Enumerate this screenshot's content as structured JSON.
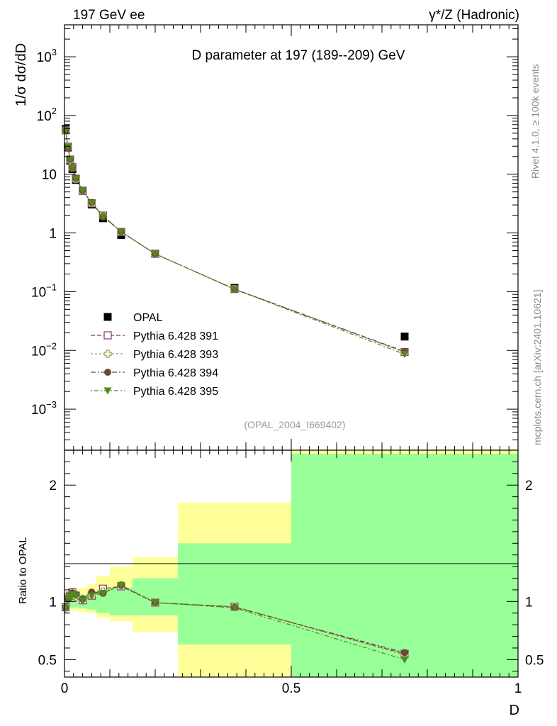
{
  "header": {
    "left": "197 GeV ee",
    "right": "γ*/Z (Hadronic)",
    "right_sup": "*"
  },
  "side_labels": {
    "top": "Rivet 4.1.0, ≥ 100k events",
    "bottom": "mcplots.cern.ch [arXiv:2401.10621]"
  },
  "chart_data": [
    {
      "type": "line",
      "title": "D parameter at 197 (189--209) GeV",
      "ylabel": "1/σ  dσ/dD",
      "xlabel": "D",
      "yscale": "log",
      "xlim": [
        0,
        1
      ],
      "ylim": [
        0.0002,
        3500
      ],
      "ytick_labels": [
        {
          "v": 0.001,
          "base": "10",
          "exp": "−3"
        },
        {
          "v": 0.01,
          "base": "10",
          "exp": "−2"
        },
        {
          "v": 0.1,
          "base": "10",
          "exp": "−1"
        },
        {
          "v": 1,
          "base": "1",
          "exp": ""
        },
        {
          "v": 10,
          "base": "10",
          "exp": ""
        },
        {
          "v": 100,
          "base": "10",
          "exp": "2"
        },
        {
          "v": 1000,
          "base": "10",
          "exp": "3"
        }
      ],
      "annotation": "(OPAL_2004_I669402)",
      "x": [
        0.0025,
        0.0075,
        0.0125,
        0.0175,
        0.025,
        0.04,
        0.06,
        0.085,
        0.125,
        0.2,
        0.375,
        0.75
      ],
      "data": {
        "name": "OPAL",
        "values": [
          59,
          28.5,
          17,
          12.2,
          8.0,
          5.2,
          3.05,
          1.78,
          0.92,
          0.445,
          0.116,
          0.0172
        ]
      },
      "series": [
        {
          "name": "Pythia 6.428 391",
          "color": "#7d3b62",
          "marker": "open-square",
          "dash": "6,3",
          "values": [
            56,
            29.5,
            17.8,
            13.2,
            8.4,
            5.25,
            3.2,
            1.98,
            1.04,
            0.44,
            0.111,
            0.0094
          ]
        },
        {
          "name": "Pythia 6.428 393",
          "color": "#9d9853",
          "marker": "open-cross",
          "dash": "3,3",
          "values": [
            55.5,
            29.2,
            17.6,
            13.0,
            8.3,
            5.3,
            3.22,
            1.93,
            1.05,
            0.44,
            0.111,
            0.0093
          ]
        },
        {
          "name": "Pythia 6.428 394",
          "color": "#6b4a33",
          "marker": "circle",
          "dash": "7,3,2,3",
          "values": [
            56.2,
            29.0,
            17.9,
            13.1,
            8.5,
            5.3,
            3.3,
            1.9,
            1.05,
            0.44,
            0.11,
            0.0096
          ]
        },
        {
          "name": "Pythia 6.428 395",
          "color": "#4f8a1d",
          "marker": "triangle-down",
          "dash": "2,3,6,3",
          "values": [
            55.8,
            29.3,
            17.7,
            12.9,
            8.4,
            5.28,
            3.2,
            1.9,
            1.05,
            0.44,
            0.11,
            0.0086
          ]
        }
      ]
    },
    {
      "type": "line",
      "ylabel": "Ratio to OPAL",
      "xlabel": "D",
      "ylim": [
        0.35,
        2.3
      ],
      "xlim": [
        0,
        1
      ],
      "yticks": [
        0.5,
        1,
        2
      ],
      "ytick_labels": [
        "0.5",
        "1",
        "2"
      ],
      "xticks": [
        0,
        0.5,
        1
      ],
      "xtick_labels": [
        "0",
        "0.5",
        "1"
      ],
      "bins": [
        [
          0,
          0.005
        ],
        [
          0.005,
          0.01
        ],
        [
          0.01,
          0.015
        ],
        [
          0.015,
          0.02
        ],
        [
          0.02,
          0.03
        ],
        [
          0.03,
          0.05
        ],
        [
          0.05,
          0.07
        ],
        [
          0.07,
          0.1
        ],
        [
          0.1,
          0.15
        ],
        [
          0.15,
          0.25
        ],
        [
          0.25,
          0.5
        ],
        [
          0.5,
          1.0
        ]
      ],
      "band_stat": [
        [
          0.95,
          1.05
        ],
        [
          0.96,
          1.04
        ],
        [
          0.95,
          1.05
        ],
        [
          0.94,
          1.06
        ],
        [
          0.95,
          1.05
        ],
        [
          0.94,
          1.06
        ],
        [
          0.93,
          1.07
        ],
        [
          0.9,
          1.1
        ],
        [
          0.88,
          1.12
        ],
        [
          0.88,
          1.2
        ],
        [
          0.63,
          1.5
        ],
        [
          0.35,
          2.27
        ]
      ],
      "band_total": [
        [
          0.92,
          1.08
        ],
        [
          0.93,
          1.07
        ],
        [
          0.93,
          1.08
        ],
        [
          0.92,
          1.1
        ],
        [
          0.92,
          1.1
        ],
        [
          0.91,
          1.12
        ],
        [
          0.9,
          1.15
        ],
        [
          0.86,
          1.22
        ],
        [
          0.83,
          1.3
        ],
        [
          0.74,
          1.38
        ],
        [
          0.35,
          1.85
        ],
        [
          0.35,
          2.3
        ]
      ],
      "series": [
        {
          "name": "Pythia 6.428 391",
          "values": [
            0.95,
            1.035,
            1.05,
            1.08,
            1.05,
            1.01,
            1.05,
            1.11,
            1.13,
            0.99,
            0.955,
            0.55
          ]
        },
        {
          "name": "Pythia 6.428 393",
          "values": [
            0.94,
            1.025,
            1.035,
            1.065,
            1.04,
            1.02,
            1.055,
            1.085,
            1.14,
            0.99,
            0.955,
            0.54
          ]
        },
        {
          "name": "Pythia 6.428 394",
          "values": [
            0.95,
            1.02,
            1.05,
            1.075,
            1.06,
            1.02,
            1.08,
            1.07,
            1.14,
            0.99,
            0.95,
            0.56
          ]
        },
        {
          "name": "Pythia 6.428 395",
          "values": [
            0.945,
            1.03,
            1.04,
            1.06,
            1.05,
            1.01,
            1.05,
            1.07,
            1.14,
            0.99,
            0.945,
            0.5
          ]
        }
      ]
    }
  ]
}
